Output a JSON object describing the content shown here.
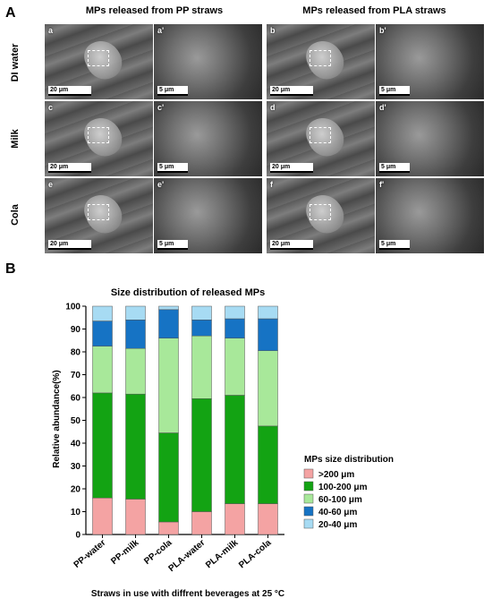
{
  "panel_a": {
    "letter": "A",
    "col_headers": [
      "MPs released from PP straws",
      "MPs released from PLA straws"
    ],
    "row_headers": [
      "DI water",
      "Milk",
      "Cola"
    ],
    "images": [
      {
        "label": "a",
        "scale": "20 μm"
      },
      {
        "label": "a'",
        "scale": "5 μm"
      },
      {
        "label": "b",
        "scale": "20 μm"
      },
      {
        "label": "b'",
        "scale": "5 μm"
      },
      {
        "label": "c",
        "scale": "20 μm"
      },
      {
        "label": "c'",
        "scale": "5 μm"
      },
      {
        "label": "d",
        "scale": "20 μm"
      },
      {
        "label": "d'",
        "scale": "5 μm"
      },
      {
        "label": "e",
        "scale": "20 μm"
      },
      {
        "label": "e'",
        "scale": "5 μm"
      },
      {
        "label": "f",
        "scale": "20 μm"
      },
      {
        "label": "f'",
        "scale": "5 μm"
      }
    ]
  },
  "panel_b": {
    "letter": "B"
  },
  "chart_data": {
    "type": "bar",
    "stacked": true,
    "title": "Size distribution of released MPs",
    "xlabel": "Straws in use with diffrent beverages at 25 °C",
    "ylabel": "Relative abundance(%)",
    "ylim": [
      0,
      100
    ],
    "yticks": [
      0,
      10,
      20,
      30,
      40,
      50,
      60,
      70,
      80,
      90,
      100
    ],
    "categories": [
      "PP-water",
      "PP-milk",
      "PP-cola",
      "PLA-water",
      "PLA-milk",
      "PLA-cola"
    ],
    "legend_title": "MPs size distribution",
    "legend_position": "right",
    "series": [
      {
        "name": ">200 μm",
        "color": "#f4a3a3",
        "values": [
          16,
          15.5,
          5.5,
          10,
          13.5,
          13.5
        ]
      },
      {
        "name": "100-200 μm",
        "color": "#13a313",
        "values": [
          46,
          46,
          39,
          49.5,
          47.5,
          34
        ]
      },
      {
        "name": "60-100 μm",
        "color": "#a8e89a",
        "values": [
          20.5,
          20,
          41.5,
          27.5,
          25,
          33
        ]
      },
      {
        "name": "40-60 μm",
        "color": "#1673c4",
        "values": [
          11,
          12.5,
          12.5,
          7,
          8.5,
          14
        ]
      },
      {
        "name": "20-40 μm",
        "color": "#a7dbf3",
        "values": [
          6.5,
          6,
          1.5,
          6,
          5.5,
          5.5
        ]
      }
    ]
  }
}
